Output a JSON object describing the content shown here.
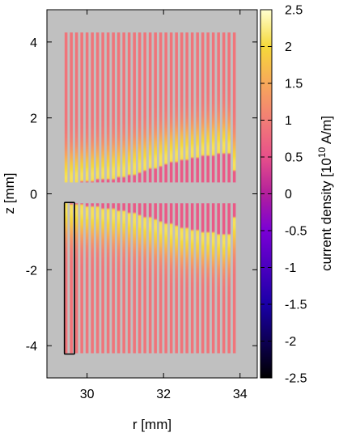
{
  "chart_data": {
    "type": "heatmap",
    "xlabel": "r [mm]",
    "ylabel": "z [mm]",
    "xlim": [
      28.95,
      34.45
    ],
    "ylim": [
      -4.85,
      4.85
    ],
    "x_ticks": [
      30,
      32,
      34
    ],
    "y_ticks": [
      4,
      2,
      0,
      -2,
      -4
    ],
    "colorbar": {
      "label": "current density [10",
      "label_exponent": "10",
      "label_unit": " A/m]",
      "min": -2.5,
      "max": 2.5,
      "ticks": [
        "2.5",
        "2",
        "1.5",
        "1",
        "0.5",
        "0",
        "-0.5",
        "-1",
        "-1.5",
        "-2",
        "-2.5"
      ],
      "colormap": [
        {
          "v": -2.5,
          "color": "#000000"
        },
        {
          "v": -1.5,
          "color": "#1a00a8"
        },
        {
          "v": -0.5,
          "color": "#7a00d6"
        },
        {
          "v": 0.0,
          "color": "#b21f9c"
        },
        {
          "v": 0.5,
          "color": "#e8508a"
        },
        {
          "v": 1.0,
          "color": "#f27d76"
        },
        {
          "v": 1.5,
          "color": "#f7a85a"
        },
        {
          "v": 2.0,
          "color": "#f5d93a"
        },
        {
          "v": 2.5,
          "color": "#ffffd0"
        }
      ]
    },
    "background_color": "#c0c0c0",
    "strips": {
      "count": 33,
      "r_start": 29.45,
      "r_end": 33.85,
      "r_width": 0.075,
      "upper_z": [
        0.3,
        4.25
      ],
      "lower_z": [
        -4.2,
        -0.25
      ]
    },
    "density_profile": {
      "far_value": 0.9,
      "peak_value": 2.1,
      "gap_value": 0.6,
      "peak_offset": 0.55,
      "peak_width": 0.5,
      "gap_half_width_at_r": [
        [
          29.45,
          0.25
        ],
        [
          31.0,
          0.45
        ],
        [
          32.5,
          0.9
        ],
        [
          33.7,
          1.1
        ],
        [
          33.85,
          0.6
        ]
      ]
    },
    "highlight_box": {
      "r": [
        29.45,
        29.63
      ],
      "z": [
        -4.2,
        -0.25
      ],
      "color": "#000000"
    }
  }
}
